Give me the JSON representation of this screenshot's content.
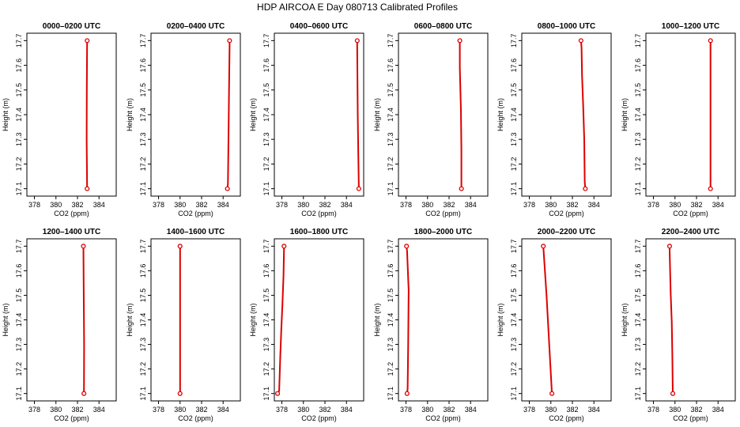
{
  "figure": {
    "title": "HDP AIRCOA E  Day 080713  Calibrated Profiles",
    "profile_color": "#dd0000"
  },
  "chart_data": [
    {
      "type": "line",
      "title": "0000–0200 UTC",
      "xlabel": "CO2 (ppm)",
      "ylabel": "Height (m)",
      "xlim": [
        377.3,
        385.6
      ],
      "ylim": [
        17.07,
        17.73
      ],
      "xticks": [
        378,
        380,
        382,
        384
      ],
      "yticks": [
        17.1,
        17.2,
        17.3,
        17.4,
        17.5,
        17.6,
        17.7
      ],
      "series": [
        {
          "x": [
            382.9,
            382.85,
            382.87,
            382.9
          ],
          "y": [
            17.1,
            17.3,
            17.5,
            17.7
          ]
        }
      ],
      "endpoints": [
        {
          "x": 382.9,
          "y": 17.1
        },
        {
          "x": 382.9,
          "y": 17.7
        }
      ]
    },
    {
      "type": "line",
      "title": "0200–0400 UTC",
      "xlabel": "CO2 (ppm)",
      "ylabel": "Height (m)",
      "xlim": [
        377.3,
        385.6
      ],
      "ylim": [
        17.07,
        17.73
      ],
      "xticks": [
        378,
        380,
        382,
        384
      ],
      "yticks": [
        17.1,
        17.2,
        17.3,
        17.4,
        17.5,
        17.6,
        17.7
      ],
      "series": [
        {
          "x": [
            384.4,
            384.45,
            384.5,
            384.55,
            384.6,
            384.6
          ],
          "y": [
            17.1,
            17.12,
            17.3,
            17.5,
            17.68,
            17.7
          ]
        }
      ],
      "endpoints": [
        {
          "x": 384.4,
          "y": 17.1
        },
        {
          "x": 384.6,
          "y": 17.7
        }
      ]
    },
    {
      "type": "line",
      "title": "0400–0600 UTC",
      "xlabel": "CO2 (ppm)",
      "ylabel": "Height (m)",
      "xlim": [
        377.3,
        385.6
      ],
      "ylim": [
        17.07,
        17.73
      ],
      "xticks": [
        378,
        380,
        382,
        384
      ],
      "yticks": [
        17.1,
        17.2,
        17.3,
        17.4,
        17.5,
        17.6,
        17.7
      ],
      "series": [
        {
          "x": [
            385.15,
            385.1,
            385.05,
            385.0,
            385.0
          ],
          "y": [
            17.1,
            17.24,
            17.4,
            17.68,
            17.7
          ]
        }
      ],
      "endpoints": [
        {
          "x": 385.15,
          "y": 17.1
        },
        {
          "x": 385.0,
          "y": 17.7
        }
      ]
    },
    {
      "type": "line",
      "title": "0600–0800 UTC",
      "xlabel": "CO2 (ppm)",
      "ylabel": "Height (m)",
      "xlim": [
        377.3,
        385.6
      ],
      "ylim": [
        17.07,
        17.73
      ],
      "xticks": [
        378,
        380,
        382,
        384
      ],
      "yticks": [
        17.1,
        17.2,
        17.3,
        17.4,
        17.5,
        17.6,
        17.7
      ],
      "series": [
        {
          "x": [
            383.15,
            383.15,
            383.1,
            383.0,
            383.0
          ],
          "y": [
            17.1,
            17.26,
            17.42,
            17.59,
            17.7
          ]
        }
      ],
      "endpoints": [
        {
          "x": 383.15,
          "y": 17.1
        },
        {
          "x": 383.0,
          "y": 17.7
        }
      ]
    },
    {
      "type": "line",
      "title": "0800–1000 UTC",
      "xlabel": "CO2 (ppm)",
      "ylabel": "Height (m)",
      "xlim": [
        377.3,
        385.6
      ],
      "ylim": [
        17.07,
        17.73
      ],
      "xticks": [
        378,
        380,
        382,
        384
      ],
      "yticks": [
        17.1,
        17.2,
        17.3,
        17.4,
        17.5,
        17.6,
        17.7
      ],
      "series": [
        {
          "x": [
            383.2,
            383.15,
            383.1,
            383.0,
            382.9,
            382.85,
            382.8
          ],
          "y": [
            17.1,
            17.13,
            17.3,
            17.44,
            17.56,
            17.67,
            17.7
          ]
        }
      ],
      "endpoints": [
        {
          "x": 383.2,
          "y": 17.1
        },
        {
          "x": 382.8,
          "y": 17.7
        }
      ]
    },
    {
      "type": "line",
      "title": "1000–1200 UTC",
      "xlabel": "CO2 (ppm)",
      "ylabel": "Height (m)",
      "xlim": [
        377.3,
        385.6
      ],
      "ylim": [
        17.07,
        17.73
      ],
      "xticks": [
        378,
        380,
        382,
        384
      ],
      "yticks": [
        17.1,
        17.2,
        17.3,
        17.4,
        17.5,
        17.6,
        17.7
      ],
      "series": [
        {
          "x": [
            383.3,
            383.3,
            383.3,
            383.3
          ],
          "y": [
            17.1,
            17.45,
            17.68,
            17.7
          ]
        }
      ],
      "endpoints": [
        {
          "x": 383.3,
          "y": 17.1
        },
        {
          "x": 383.3,
          "y": 17.7
        }
      ]
    },
    {
      "type": "line",
      "title": "1200–1400 UTC",
      "xlabel": "CO2 (ppm)",
      "ylabel": "Height (m)",
      "xlim": [
        377.3,
        385.6
      ],
      "ylim": [
        17.07,
        17.73
      ],
      "xticks": [
        378,
        380,
        382,
        384
      ],
      "yticks": [
        17.1,
        17.2,
        17.3,
        17.4,
        17.5,
        17.6,
        17.7
      ],
      "series": [
        {
          "x": [
            382.6,
            382.62,
            382.58,
            382.55
          ],
          "y": [
            17.1,
            17.3,
            17.51,
            17.7
          ]
        }
      ],
      "endpoints": [
        {
          "x": 382.6,
          "y": 17.1
        },
        {
          "x": 382.55,
          "y": 17.7
        }
      ]
    },
    {
      "type": "line",
      "title": "1400–1600 UTC",
      "xlabel": "CO2 (ppm)",
      "ylabel": "Height (m)",
      "xlim": [
        377.3,
        385.6
      ],
      "ylim": [
        17.07,
        17.73
      ],
      "xticks": [
        378,
        380,
        382,
        384
      ],
      "yticks": [
        17.1,
        17.2,
        17.3,
        17.4,
        17.5,
        17.6,
        17.7
      ],
      "series": [
        {
          "x": [
            380.0,
            380.0,
            380.0
          ],
          "y": [
            17.1,
            17.4,
            17.7
          ]
        }
      ],
      "endpoints": [
        {
          "x": 380.0,
          "y": 17.1
        },
        {
          "x": 380.0,
          "y": 17.7
        }
      ]
    },
    {
      "type": "line",
      "title": "1600–1800 UTC",
      "xlabel": "CO2 (ppm)",
      "ylabel": "Height (m)",
      "xlim": [
        377.3,
        385.6
      ],
      "ylim": [
        17.07,
        17.73
      ],
      "xticks": [
        378,
        380,
        382,
        384
      ],
      "yticks": [
        17.1,
        17.2,
        17.3,
        17.4,
        17.5,
        17.6,
        17.7
      ],
      "series": [
        {
          "x": [
            377.6,
            377.75,
            377.85,
            377.95,
            378.05,
            378.15,
            378.2
          ],
          "y": [
            17.1,
            17.11,
            17.25,
            17.36,
            17.46,
            17.58,
            17.7
          ]
        }
      ],
      "endpoints": [
        {
          "x": 377.6,
          "y": 17.1
        },
        {
          "x": 378.2,
          "y": 17.7
        }
      ]
    },
    {
      "type": "line",
      "title": "1800–2000 UTC",
      "xlabel": "CO2 (ppm)",
      "ylabel": "Height (m)",
      "xlim": [
        377.3,
        385.6
      ],
      "ylim": [
        17.07,
        17.73
      ],
      "xticks": [
        378,
        380,
        382,
        384
      ],
      "yticks": [
        17.1,
        17.2,
        17.3,
        17.4,
        17.5,
        17.6,
        17.7
      ],
      "series": [
        {
          "x": [
            378.1,
            378.15,
            378.2,
            378.25,
            378.1,
            378.05
          ],
          "y": [
            17.1,
            17.12,
            17.3,
            17.52,
            17.68,
            17.7
          ]
        }
      ],
      "endpoints": [
        {
          "x": 378.1,
          "y": 17.1
        },
        {
          "x": 378.05,
          "y": 17.7
        }
      ]
    },
    {
      "type": "line",
      "title": "2000–2200 UTC",
      "xlabel": "CO2 (ppm)",
      "ylabel": "Height (m)",
      "xlim": [
        377.3,
        385.6
      ],
      "ylim": [
        17.07,
        17.73
      ],
      "xticks": [
        378,
        380,
        382,
        384
      ],
      "yticks": [
        17.1,
        17.2,
        17.3,
        17.4,
        17.5,
        17.6,
        17.7
      ],
      "series": [
        {
          "x": [
            380.1,
            379.85,
            379.6,
            379.3
          ],
          "y": [
            17.1,
            17.3,
            17.5,
            17.7
          ]
        }
      ],
      "endpoints": [
        {
          "x": 380.1,
          "y": 17.1
        },
        {
          "x": 379.3,
          "y": 17.7
        }
      ]
    },
    {
      "type": "line",
      "title": "2200–2400 UTC",
      "xlabel": "CO2 (ppm)",
      "ylabel": "Height (m)",
      "xlim": [
        377.3,
        385.6
      ],
      "ylim": [
        17.07,
        17.73
      ],
      "xticks": [
        378,
        380,
        382,
        384
      ],
      "yticks": [
        17.1,
        17.2,
        17.3,
        17.4,
        17.5,
        17.6,
        17.7
      ],
      "series": [
        {
          "x": [
            379.8,
            379.75,
            379.7,
            379.6,
            379.5,
            379.5
          ],
          "y": [
            17.1,
            17.26,
            17.39,
            17.51,
            17.68,
            17.7
          ]
        }
      ],
      "endpoints": [
        {
          "x": 379.8,
          "y": 17.1
        },
        {
          "x": 379.5,
          "y": 17.7
        }
      ]
    }
  ]
}
